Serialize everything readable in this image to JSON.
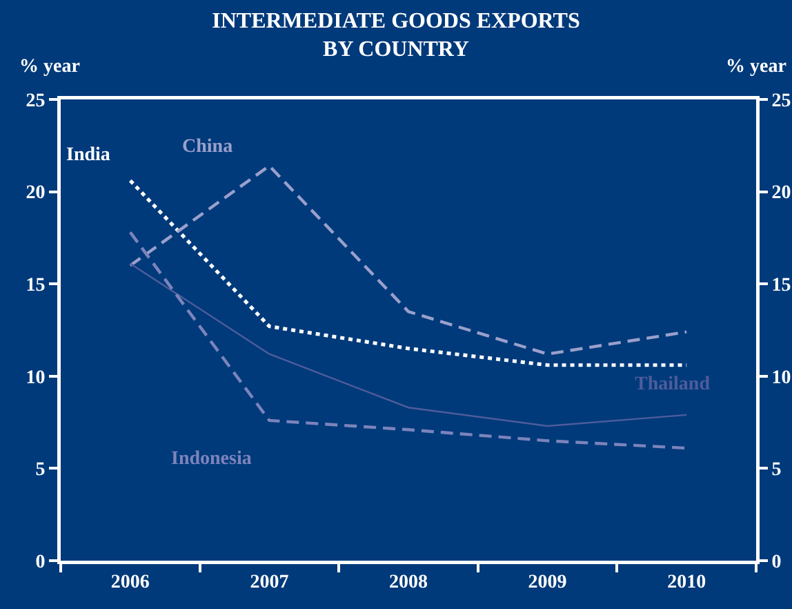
{
  "chart_data": {
    "type": "line",
    "title": "INTERMEDIATE GOODS EXPORTS\nBY COUNTRY",
    "ylabel": "% year",
    "y2label": "% year",
    "categories": [
      "2006",
      "2007",
      "2008",
      "2009",
      "2010"
    ],
    "series": [
      {
        "name": "India",
        "color": "#ffffff",
        "line_style": "dotted",
        "values": [
          20.6,
          12.7,
          11.5,
          10.6,
          10.6
        ]
      },
      {
        "name": "China",
        "color": "#9aa0cc",
        "line_style": "dashed",
        "values": [
          16.0,
          21.4,
          13.5,
          11.2,
          12.4
        ]
      },
      {
        "name": "Thailand",
        "color": "#4e5c9c",
        "line_style": "solid",
        "values": [
          16.1,
          11.2,
          8.3,
          7.3,
          7.9
        ]
      },
      {
        "name": "Indonesia",
        "color": "#7c84bc",
        "line_style": "dashed",
        "values": [
          17.8,
          7.6,
          7.1,
          6.5,
          6.1
        ]
      }
    ],
    "ylim": [
      0,
      25
    ],
    "yticks": [
      0,
      5,
      10,
      15,
      20,
      25
    ],
    "y2lim": [
      0,
      25
    ],
    "y2ticks": [
      0,
      5,
      10,
      15,
      20,
      25
    ],
    "grid": false,
    "legend": false,
    "marker": "none"
  }
}
